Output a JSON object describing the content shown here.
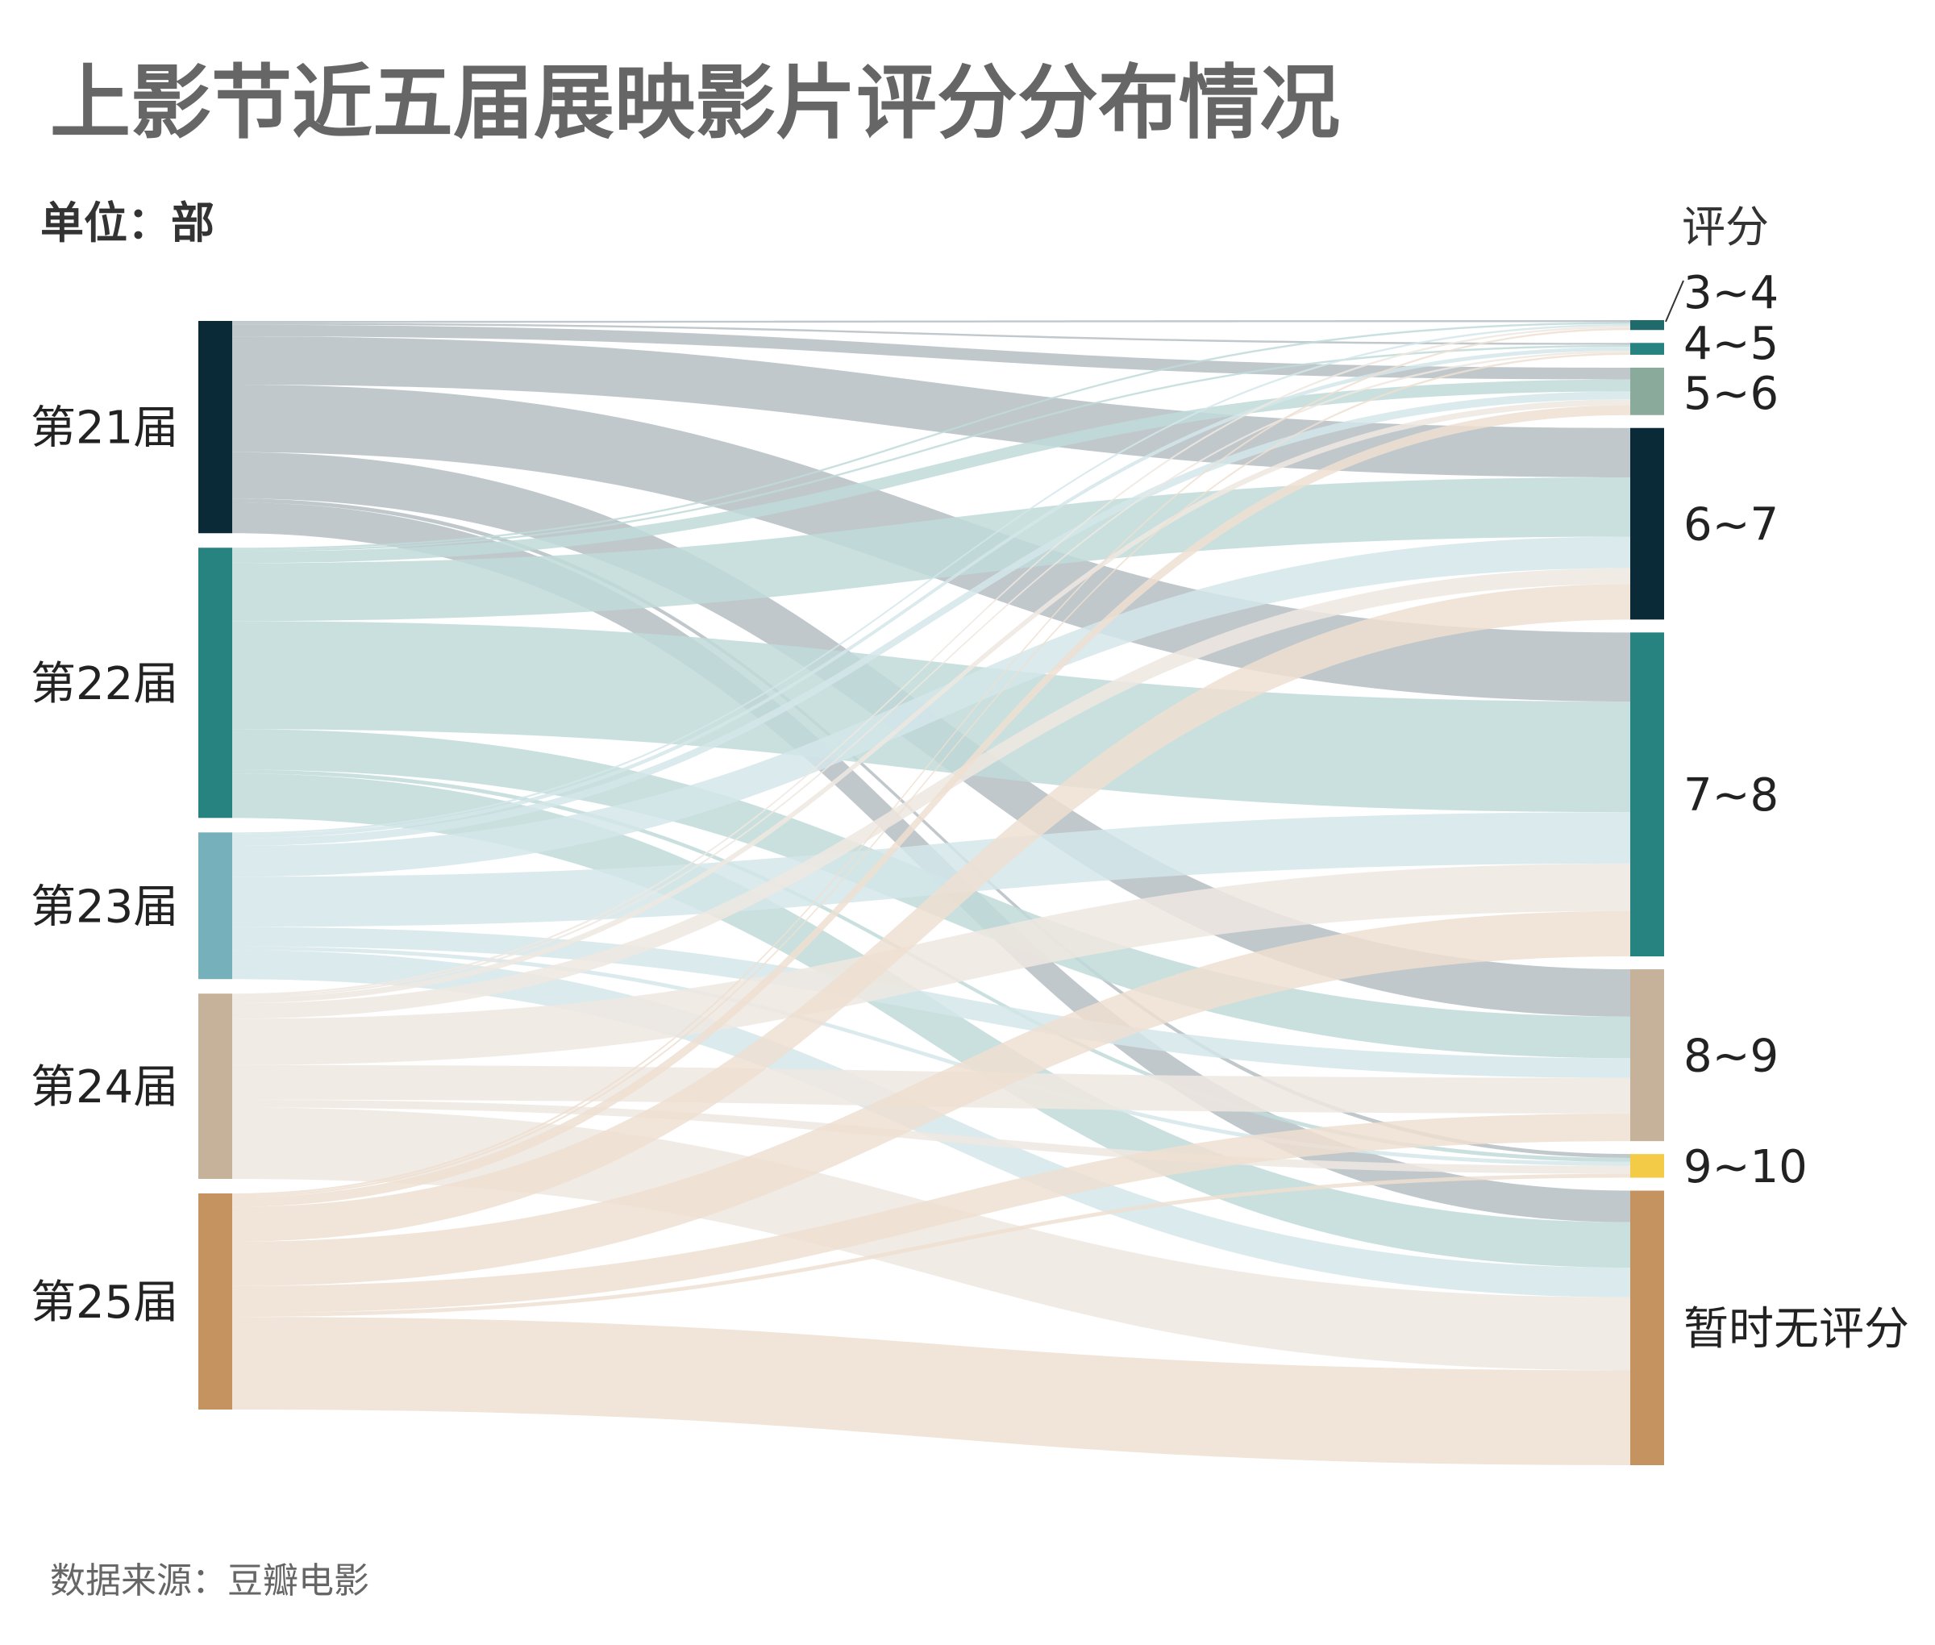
{
  "title": "上影节近五届展映影片评分分布情况",
  "unit": "单位：部",
  "source": "数据来源：豆瓣电影",
  "chart_data": {
    "type": "sankey",
    "title": "上影节近五届展映影片评分分布情况",
    "unit": "单位：部",
    "right_axis_title": "评分",
    "sources": [
      {
        "name": "第21届",
        "color": "#0b2a38",
        "link_color": "#b5bec3"
      },
      {
        "name": "第22届",
        "color": "#278380",
        "link_color": "#bfdad9"
      },
      {
        "name": "第23届",
        "color": "#76b1bb",
        "link_color": "#d3e6ea"
      },
      {
        "name": "第24届",
        "color": "#c6b29a",
        "link_color": "#efe7e0"
      },
      {
        "name": "第25届",
        "color": "#c4935f",
        "link_color": "#eedfd1"
      }
    ],
    "targets": [
      {
        "name": "3~4",
        "color": "#1f6a6b"
      },
      {
        "name": "4~5",
        "color": "#278380"
      },
      {
        "name": "5~6",
        "color": "#8aab9c"
      },
      {
        "name": "6~7",
        "color": "#0b2a38"
      },
      {
        "name": "7~8",
        "color": "#278380"
      },
      {
        "name": "8~9",
        "color": "#c6b29a"
      },
      {
        "name": "9~10",
        "color": "#f4cb46"
      },
      {
        "name": "暂时无评分",
        "color": "#c4935f"
      }
    ],
    "links": [
      {
        "source": "第21届",
        "target": "3~4",
        "value": 1
      },
      {
        "source": "第21届",
        "target": "4~5",
        "value": 1
      },
      {
        "source": "第21届",
        "target": "5~6",
        "value": 6
      },
      {
        "source": "第21届",
        "target": "6~7",
        "value": 25
      },
      {
        "source": "第21届",
        "target": "7~8",
        "value": 35
      },
      {
        "source": "第21届",
        "target": "8~9",
        "value": 24
      },
      {
        "source": "第21届",
        "target": "9~10",
        "value": 2
      },
      {
        "source": "第21届",
        "target": "暂时无评分",
        "value": 16
      },
      {
        "source": "第22届",
        "target": "3~4",
        "value": 1
      },
      {
        "source": "第22届",
        "target": "4~5",
        "value": 1
      },
      {
        "source": "第22届",
        "target": "5~6",
        "value": 6
      },
      {
        "source": "第22届",
        "target": "6~7",
        "value": 30
      },
      {
        "source": "第22届",
        "target": "7~8",
        "value": 56
      },
      {
        "source": "第22届",
        "target": "8~9",
        "value": 21
      },
      {
        "source": "第22届",
        "target": "9~10",
        "value": 2
      },
      {
        "source": "第22届",
        "target": "暂时无评分",
        "value": 23
      },
      {
        "source": "第23届",
        "target": "3~4",
        "value": 1
      },
      {
        "source": "第23届",
        "target": "4~5",
        "value": 2
      },
      {
        "source": "第23届",
        "target": "5~6",
        "value": 4
      },
      {
        "source": "第23届",
        "target": "6~7",
        "value": 16
      },
      {
        "source": "第23届",
        "target": "7~8",
        "value": 26
      },
      {
        "source": "第23届",
        "target": "8~9",
        "value": 10
      },
      {
        "source": "第23届",
        "target": "9~10",
        "value": 2
      },
      {
        "source": "第23届",
        "target": "暂时无评分",
        "value": 15
      },
      {
        "source": "第24届",
        "target": "3~4",
        "value": 1
      },
      {
        "source": "第24届",
        "target": "4~5",
        "value": 1
      },
      {
        "source": "第24届",
        "target": "5~6",
        "value": 3
      },
      {
        "source": "第24届",
        "target": "6~7",
        "value": 8
      },
      {
        "source": "第24届",
        "target": "7~8",
        "value": 24
      },
      {
        "source": "第24届",
        "target": "8~9",
        "value": 18
      },
      {
        "source": "第24届",
        "target": "9~10",
        "value": 4
      },
      {
        "source": "第24届",
        "target": "暂时无评分",
        "value": 37
      },
      {
        "source": "第25届",
        "target": "3~4",
        "value": 1
      },
      {
        "source": "第25届",
        "target": "4~5",
        "value": 1
      },
      {
        "source": "第25届",
        "target": "5~6",
        "value": 5
      },
      {
        "source": "第25届",
        "target": "6~7",
        "value": 18
      },
      {
        "source": "第25届",
        "target": "7~8",
        "value": 23
      },
      {
        "source": "第25届",
        "target": "8~9",
        "value": 14
      },
      {
        "source": "第25届",
        "target": "9~10",
        "value": 2
      },
      {
        "source": "第25届",
        "target": "暂时无评分",
        "value": 48
      }
    ]
  }
}
